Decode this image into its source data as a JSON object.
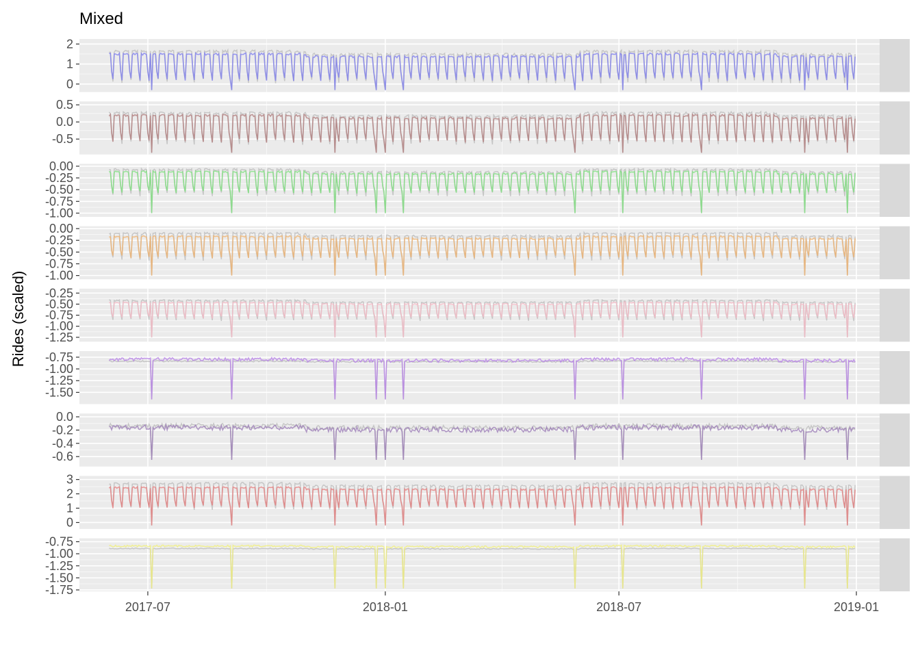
{
  "chart_data": {
    "type": "line",
    "title": "Mixed",
    "ylabel": "Rides (scaled)",
    "xlabel": "",
    "x_range": [
      "2017-06-01",
      "2018-12-31"
    ],
    "x_limits": [
      "2017-05-09",
      "2019-01-19"
    ],
    "x_ticks": [
      {
        "date": "2017-07-01",
        "label": "2017-07"
      },
      {
        "date": "2018-01-01",
        "label": "2018-01"
      },
      {
        "date": "2018-07-01",
        "label": "2018-07"
      },
      {
        "date": "2019-01-01",
        "label": "2019-01"
      }
    ],
    "grid": true,
    "facet_layout": "rows",
    "strip_position": "right",
    "reference_series_color": "#bdbdbd",
    "panels": [
      {
        "name": "blue",
        "color": "#7b7bef",
        "ylim": [
          -0.4,
          2.25
        ],
        "yticks": [
          0,
          1,
          2
        ],
        "ytick_labels": [
          "0",
          "1",
          "2"
        ],
        "pattern": "weekly",
        "high": 1.55,
        "low": 0.25,
        "ref_high": 1.7,
        "ref_low": 0.15,
        "holiday_drop": -0.3
      },
      {
        "name": "brown",
        "color": "#b07a7a",
        "ylim": [
          -0.95,
          0.6
        ],
        "yticks": [
          -0.5,
          0.0,
          0.5
        ],
        "ytick_labels": [
          "-0.5",
          "0.0",
          "0.5"
        ],
        "pattern": "weekly",
        "high": 0.22,
        "low": -0.55,
        "ref_high": 0.3,
        "ref_low": -0.6,
        "holiday_drop": -0.9
      },
      {
        "name": "green",
        "color": "#7be07b",
        "ylim": [
          -1.08,
          0.05
        ],
        "yticks": [
          0.0,
          -0.25,
          -0.5,
          -0.75,
          -1.0
        ],
        "ytick_labels": [
          "0.00",
          "-0.25",
          "-0.50",
          "-0.75",
          "-1.00"
        ],
        "pattern": "weekly",
        "high": -0.1,
        "low": -0.55,
        "ref_high": -0.05,
        "ref_low": -0.6,
        "holiday_drop": -1.0
      },
      {
        "name": "orange",
        "color": "#f0b06a",
        "ylim": [
          -1.08,
          0.05
        ],
        "yticks": [
          0.0,
          -0.25,
          -0.5,
          -0.75,
          -1.0
        ],
        "ytick_labels": [
          "0.00",
          "-0.25",
          "-0.50",
          "-0.75",
          "-1.00"
        ],
        "pattern": "weekly",
        "high": -0.15,
        "low": -0.6,
        "ref_high": -0.08,
        "ref_low": -0.65,
        "holiday_drop": -1.0
      },
      {
        "name": "pink",
        "color": "#f5b8c4",
        "ylim": [
          -1.35,
          -0.15
        ],
        "yticks": [
          -0.25,
          -0.5,
          -0.75,
          -1.0,
          -1.25
        ],
        "ytick_labels": [
          "-0.25",
          "-0.50",
          "-0.75",
          "-1.00",
          "-1.25"
        ],
        "pattern": "weekly",
        "high": -0.45,
        "low": -0.8,
        "ref_high": -0.4,
        "ref_low": -0.85,
        "holiday_drop": -1.25
      },
      {
        "name": "purple",
        "color": "#b57ee8",
        "ylim": [
          -1.75,
          -0.62
        ],
        "yticks": [
          -0.75,
          -1.0,
          -1.25,
          -1.5
        ],
        "ytick_labels": [
          "-0.75",
          "-1.00",
          "-1.25",
          "-1.50"
        ],
        "pattern": "flat",
        "high": -0.76,
        "low": -0.9,
        "ref_high": -0.82,
        "ref_low": -0.88,
        "holiday_drop": -1.65
      },
      {
        "name": "purple_express",
        "color": "#9a7ab5",
        "ylim": [
          -0.75,
          0.05
        ],
        "yticks": [
          0.0,
          -0.2,
          -0.4,
          -0.6
        ],
        "ytick_labels": [
          "0.0",
          "-0.2",
          "-0.4",
          "-0.6"
        ],
        "pattern": "flat",
        "high": -0.12,
        "low": -0.28,
        "ref_high": -0.1,
        "ref_low": -0.25,
        "holiday_drop": -0.65
      },
      {
        "name": "red",
        "color": "#e57a7a",
        "ylim": [
          -0.45,
          3.25
        ],
        "yticks": [
          0,
          1,
          2,
          3
        ],
        "ytick_labels": [
          "0",
          "1",
          "2",
          "3"
        ],
        "pattern": "weekly",
        "high": 2.5,
        "low": 1.1,
        "ref_high": 2.8,
        "ref_low": 1.0,
        "holiday_drop": -0.2
      },
      {
        "name": "yellow",
        "color": "#f2f07a",
        "ylim": [
          -1.78,
          -0.68
        ],
        "yticks": [
          -0.75,
          -1.0,
          -1.25,
          -1.5,
          -1.75
        ],
        "ytick_labels": [
          "-0.75",
          "-1.00",
          "-1.25",
          "-1.50",
          "-1.75"
        ],
        "pattern": "flat",
        "high": -0.82,
        "low": -0.9,
        "ref_high": -0.88,
        "ref_low": -0.92,
        "holiday_drop": -1.72
      }
    ]
  }
}
